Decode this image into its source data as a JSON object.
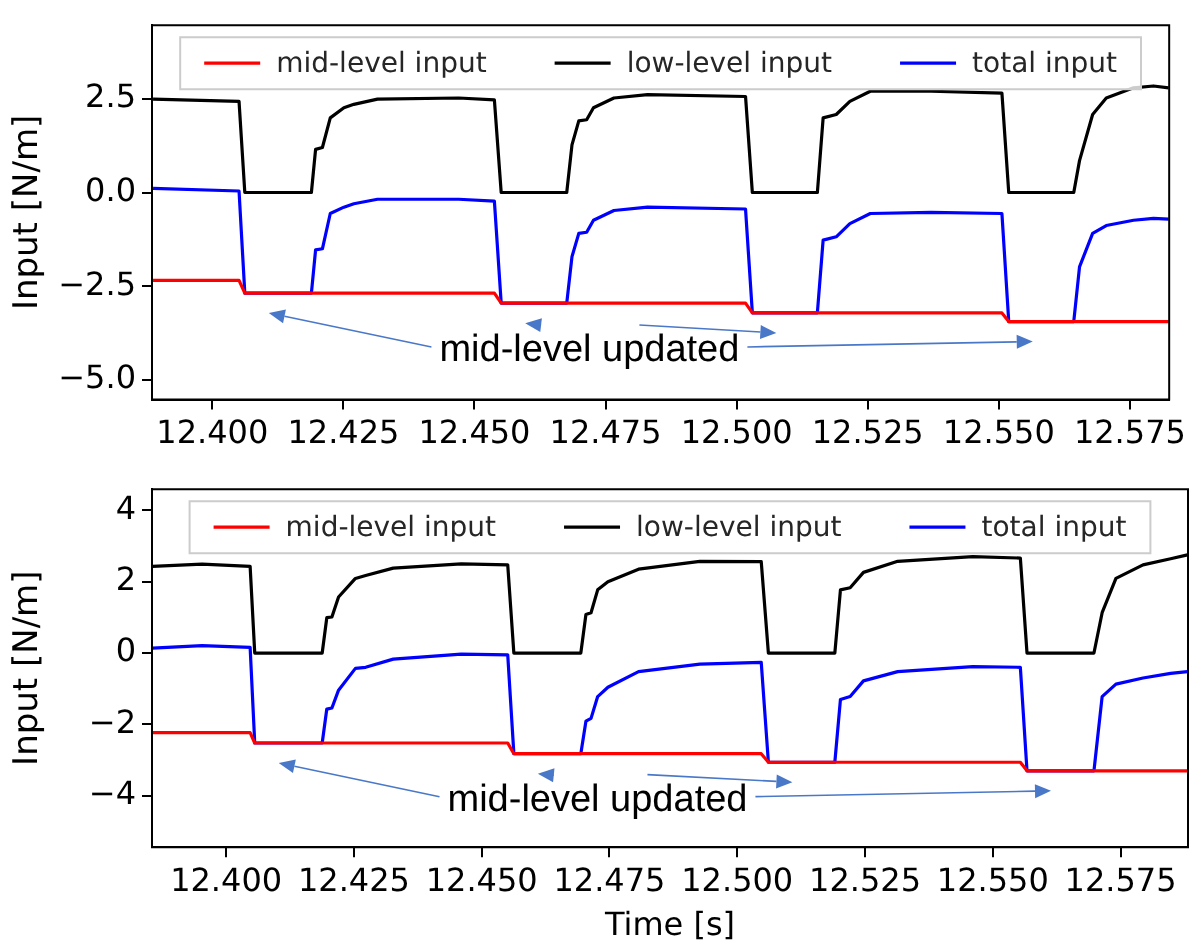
{
  "chart_data": [
    {
      "type": "line",
      "ylabel": "Input [N/m]",
      "xlim": [
        12.3885,
        12.5825
      ],
      "ylim": [
        -5.52,
        4.46
      ],
      "xticks": [
        {
          "value": 12.4,
          "label": "12.400"
        },
        {
          "value": 12.425,
          "label": "12.425"
        },
        {
          "value": 12.45,
          "label": "12.450"
        },
        {
          "value": 12.475,
          "label": "12.475"
        },
        {
          "value": 12.5,
          "label": "12.500"
        },
        {
          "value": 12.525,
          "label": "12.525"
        },
        {
          "value": 12.55,
          "label": "12.550"
        },
        {
          "value": 12.575,
          "label": "12.575"
        }
      ],
      "yticks": [
        {
          "value": -5,
          "label": "−5.0"
        },
        {
          "value": -2.5,
          "label": "−2.5"
        },
        {
          "value": 0,
          "label": "0.0"
        },
        2.5
      ],
      "grid": false,
      "legend": "top",
      "annotations": [
        "mid-level updated"
      ],
      "series": [
        {
          "name": "mid-level input",
          "color": "#ff0000",
          "x": [
            12.3887,
            12.4051,
            12.4062,
            12.4538,
            12.4551,
            12.5017,
            12.503,
            12.5506,
            12.5519,
            12.5824
          ],
          "values": [
            -2.34,
            -2.34,
            -2.68,
            -2.68,
            -2.95,
            -2.95,
            -3.21,
            -3.21,
            -3.44,
            -3.44
          ]
        },
        {
          "name": "low-level input",
          "color": "#000000",
          "x": [
            12.3887,
            12.4051,
            12.4062,
            12.4189,
            12.4197,
            12.421,
            12.4225,
            12.4251,
            12.427,
            12.4315,
            12.447,
            12.4538,
            12.4551,
            12.4676,
            12.4686,
            12.4699,
            12.4714,
            12.4727,
            12.4766,
            12.483,
            12.5017,
            12.503,
            12.5154,
            12.5165,
            12.519,
            12.5216,
            12.5255,
            12.5371,
            12.5506,
            12.5519,
            12.5643,
            12.5654,
            12.5679,
            12.5705,
            12.5757,
            12.5795,
            12.5824
          ],
          "values": [
            2.49,
            2.43,
            0,
            0,
            1.15,
            1.2,
            1.99,
            2.26,
            2.35,
            2.49,
            2.52,
            2.47,
            0,
            0,
            1.27,
            1.91,
            1.94,
            2.26,
            2.52,
            2.61,
            2.56,
            0,
            0,
            1.99,
            2.08,
            2.43,
            2.7,
            2.7,
            2.65,
            0,
            0,
            0.85,
            2.08,
            2.52,
            2.79,
            2.84,
            2.79
          ]
        },
        {
          "name": "total input",
          "color": "#0000ff",
          "x": [
            12.3887,
            12.4051,
            12.4062,
            12.4189,
            12.4197,
            12.421,
            12.4225,
            12.4251,
            12.427,
            12.4315,
            12.447,
            12.4538,
            12.4551,
            12.4676,
            12.4686,
            12.4699,
            12.4714,
            12.4727,
            12.4766,
            12.483,
            12.5017,
            12.503,
            12.5154,
            12.5165,
            12.519,
            12.5216,
            12.5255,
            12.5371,
            12.5506,
            12.5519,
            12.5643,
            12.5654,
            12.5679,
            12.5705,
            12.5757,
            12.5795,
            12.5824
          ],
          "values": [
            0.11,
            0.04,
            -2.68,
            -2.68,
            -1.53,
            -1.5,
            -0.56,
            -0.39,
            -0.3,
            -0.18,
            -0.18,
            -0.23,
            -2.95,
            -2.95,
            -1.71,
            -1.09,
            -1.06,
            -0.74,
            -0.48,
            -0.39,
            -0.44,
            -3.21,
            -3.21,
            -1.27,
            -1.18,
            -0.83,
            -0.56,
            -0.53,
            -0.56,
            -3.44,
            -3.44,
            -1.98,
            -1.09,
            -0.88,
            -0.74,
            -0.69,
            -0.71
          ]
        }
      ]
    },
    {
      "type": "line",
      "ylabel": "Input [N/m]",
      "xlabel": "Time [s]",
      "xlim": [
        12.3855,
        12.5882
      ],
      "ylim": [
        -5.44,
        4.59
      ],
      "xticks": [
        {
          "value": 12.4,
          "label": "12.400"
        },
        {
          "value": 12.425,
          "label": "12.425"
        },
        {
          "value": 12.45,
          "label": "12.450"
        },
        {
          "value": 12.475,
          "label": "12.475"
        },
        {
          "value": 12.5,
          "label": "12.500"
        },
        {
          "value": 12.525,
          "label": "12.525"
        },
        {
          "value": 12.55,
          "label": "12.550"
        },
        {
          "value": 12.575,
          "label": "12.575"
        }
      ],
      "yticks": [
        {
          "value": -4,
          "label": "−4"
        },
        {
          "value": -2,
          "label": "−2"
        },
        0,
        2,
        4
      ],
      "grid": false,
      "legend": "top",
      "annotations": [
        "mid-level updated"
      ],
      "series": [
        {
          "name": "mid-level input",
          "color": "#ff0000",
          "x": [
            12.3856,
            12.4047,
            12.4056,
            12.4551,
            12.4563,
            12.5047,
            12.5061,
            12.5554,
            12.5567,
            12.5881
          ],
          "values": [
            -2.23,
            -2.23,
            -2.52,
            -2.52,
            -2.82,
            -2.82,
            -3.06,
            -3.06,
            -3.3,
            -3.3
          ]
        },
        {
          "name": "low-level input",
          "color": "#000000",
          "x": [
            12.3856,
            12.3953,
            12.4047,
            12.4056,
            12.4188,
            12.4197,
            12.4207,
            12.422,
            12.4253,
            12.4273,
            12.4327,
            12.446,
            12.4551,
            12.4563,
            12.4694,
            12.4704,
            12.4714,
            12.4727,
            12.4747,
            12.4807,
            12.4927,
            12.5047,
            12.5061,
            12.5191,
            12.5202,
            12.5221,
            12.5247,
            12.5314,
            12.5461,
            12.5554,
            12.5567,
            12.5698,
            12.5714,
            12.5741,
            12.5794,
            12.5848,
            12.5881
          ],
          "values": [
            2.43,
            2.49,
            2.43,
            0,
            0,
            0.99,
            1.01,
            1.57,
            2.09,
            2.17,
            2.38,
            2.5,
            2.47,
            0,
            0,
            1.08,
            1.13,
            1.77,
            2.0,
            2.35,
            2.57,
            2.56,
            0,
            0,
            1.77,
            1.83,
            2.26,
            2.57,
            2.7,
            2.66,
            0,
            0,
            1.13,
            2.09,
            2.47,
            2.64,
            2.75
          ]
        },
        {
          "name": "total input",
          "color": "#0000ff",
          "x": [
            12.3856,
            12.3953,
            12.4047,
            12.4056,
            12.4188,
            12.4197,
            12.4207,
            12.422,
            12.4253,
            12.4273,
            12.4327,
            12.446,
            12.4551,
            12.4563,
            12.4694,
            12.4704,
            12.4714,
            12.4727,
            12.4747,
            12.4807,
            12.4927,
            12.5047,
            12.5061,
            12.5191,
            12.5202,
            12.5221,
            12.5247,
            12.5314,
            12.5461,
            12.5554,
            12.5567,
            12.5698,
            12.5714,
            12.5741,
            12.5794,
            12.5848,
            12.5881
          ],
          "values": [
            0.14,
            0.21,
            0.16,
            -2.52,
            -2.52,
            -1.57,
            -1.54,
            -1.04,
            -0.43,
            -0.4,
            -0.17,
            -0.03,
            -0.05,
            -2.82,
            -2.82,
            -1.91,
            -1.83,
            -1.22,
            -0.96,
            -0.52,
            -0.31,
            -0.26,
            -3.06,
            -3.06,
            -1.3,
            -1.22,
            -0.78,
            -0.52,
            -0.38,
            -0.4,
            -3.3,
            -3.3,
            -1.22,
            -0.87,
            -0.7,
            -0.57,
            -0.52
          ]
        }
      ]
    }
  ]
}
